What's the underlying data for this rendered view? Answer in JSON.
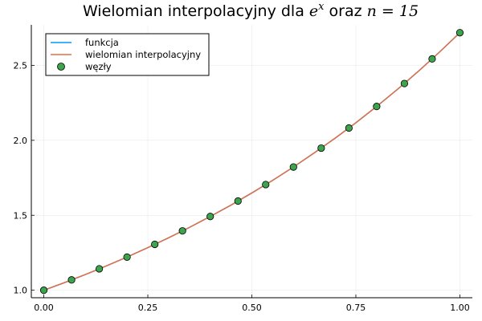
{
  "chart_data": {
    "type": "line",
    "title_prefix": "Wielomian interpolacyjny dla ",
    "title_exp_base": "e",
    "title_exp_power": "x",
    "title_middle": " oraz ",
    "title_var": "n",
    "title_eq": " = 15",
    "xlim": [
      -0.03,
      1.03
    ],
    "ylim": [
      0.95,
      2.77
    ],
    "x_ticks": [
      0.0,
      0.25,
      0.5,
      0.75,
      1.0
    ],
    "x_tick_labels": [
      "0.00",
      "0.25",
      "0.50",
      "0.75",
      "1.00"
    ],
    "y_ticks": [
      1.0,
      1.5,
      2.0,
      2.5
    ],
    "y_tick_labels": [
      "1.0",
      "1.5",
      "2.0",
      "2.5"
    ],
    "grid": true,
    "legend_position": "top-left",
    "series": [
      {
        "name": "funkcja",
        "kind": "line",
        "color": "#009af9",
        "x": [
          0.0,
          0.05,
          0.1,
          0.15,
          0.2,
          0.25,
          0.3,
          0.35,
          0.4,
          0.45,
          0.5,
          0.55,
          0.6,
          0.65,
          0.7,
          0.75,
          0.8,
          0.85,
          0.9,
          0.95,
          1.0
        ],
        "y": [
          1.0,
          1.051,
          1.105,
          1.162,
          1.221,
          1.284,
          1.35,
          1.419,
          1.492,
          1.568,
          1.649,
          1.733,
          1.822,
          1.916,
          2.014,
          2.117,
          2.226,
          2.34,
          2.46,
          2.586,
          2.718
        ]
      },
      {
        "name": "wielomian interpolacyjny",
        "kind": "line",
        "color": "#e26f46",
        "x": [
          0.0,
          0.05,
          0.1,
          0.15,
          0.2,
          0.25,
          0.3,
          0.35,
          0.4,
          0.45,
          0.5,
          0.55,
          0.6,
          0.65,
          0.7,
          0.75,
          0.8,
          0.85,
          0.9,
          0.95,
          1.0
        ],
        "y": [
          1.0,
          1.051,
          1.105,
          1.162,
          1.221,
          1.284,
          1.35,
          1.419,
          1.492,
          1.568,
          1.649,
          1.733,
          1.822,
          1.916,
          2.014,
          2.117,
          2.226,
          2.34,
          2.46,
          2.586,
          2.718
        ]
      },
      {
        "name": "węzły",
        "kind": "scatter",
        "color": "#3da44d",
        "x": [
          0.0,
          0.0667,
          0.1333,
          0.2,
          0.2667,
          0.3333,
          0.4,
          0.4667,
          0.5333,
          0.6,
          0.6667,
          0.7333,
          0.8,
          0.8667,
          0.9333,
          1.0
        ],
        "y": [
          1.0,
          1.069,
          1.143,
          1.221,
          1.306,
          1.396,
          1.492,
          1.595,
          1.705,
          1.822,
          1.948,
          2.082,
          2.226,
          2.379,
          2.543,
          2.718
        ]
      }
    ]
  }
}
